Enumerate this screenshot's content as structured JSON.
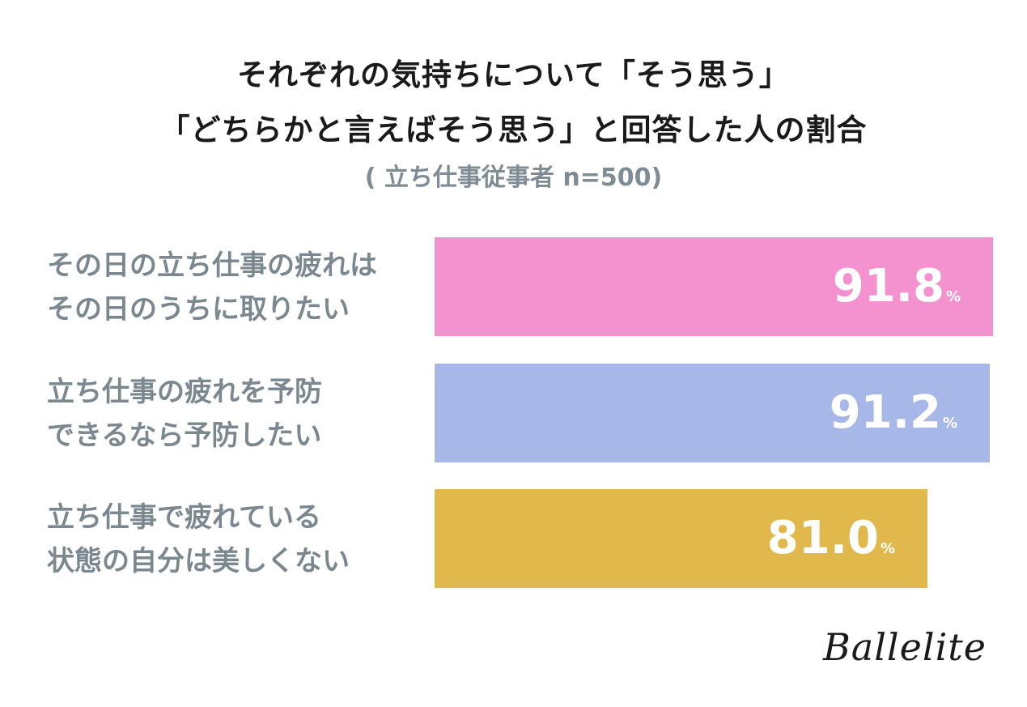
{
  "title_line1": "それぞれの気持ちについて「そう思う」",
  "title_line2": "「どちらかと言えばそう思う」と回答した人の割合",
  "subtitle": "( 立ち仕事従事者 n=500)",
  "logo": "Ballelite",
  "chart_data": {
    "type": "bar",
    "orientation": "horizontal",
    "unit": "%",
    "xlim": [
      0,
      100
    ],
    "categories": [
      [
        "その日の立ち仕事の疲れは",
        "その日のうちに取りたい"
      ],
      [
        "立ち仕事の疲れを予防",
        "できるなら予防したい"
      ],
      [
        "立ち仕事で疲れている",
        "状態の自分は美しくない"
      ]
    ],
    "values": [
      91.8,
      91.2,
      81.0
    ],
    "value_labels": [
      "91.8",
      "91.2",
      "81.0"
    ],
    "colors": [
      "#f392cf",
      "#a7b7e7",
      "#e0b84c"
    ]
  }
}
